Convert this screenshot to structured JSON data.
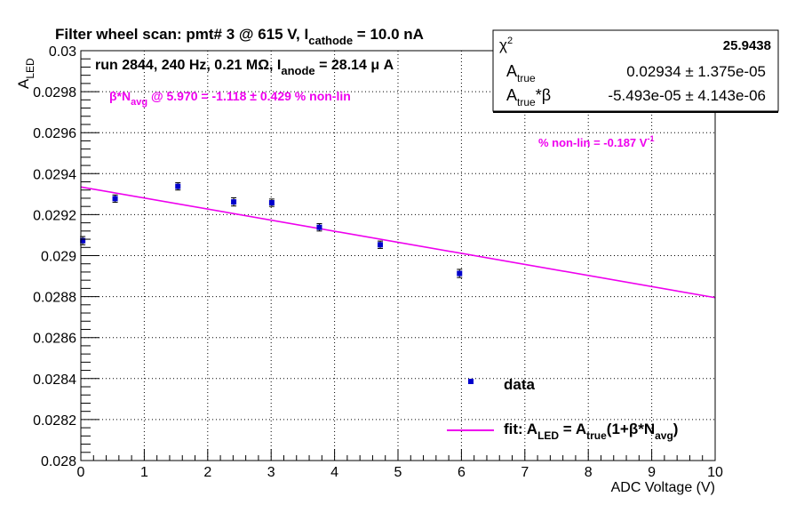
{
  "header": {
    "title_main": "Filter wheel scan: pmt#   3 @   615 V, I",
    "title_sub": "cathode",
    "title_tail": " = 10.0 nA",
    "run_main": "run 2844, 240 Hz, 0.21 MΩ, I",
    "run_sub": "anode",
    "run_tail": " = 28.14 μ A"
  },
  "annotations": {
    "beta_pre": "β*N",
    "beta_sub": "avg",
    "beta_tail": " @ 5.970 = -1.118 ± 0.429 % non-lin",
    "nonlin_main": "% non-lin = -0.187 V",
    "nonlin_sup": "-1"
  },
  "stats_box": {
    "chi2_label": "χ",
    "chi2_sup": "2",
    "chi2_value": "25.9438",
    "atrue_label": "A",
    "atrue_sub": "true",
    "atrue_value": "0.02934 ± 1.375e-05",
    "atb_label": "A",
    "atb_sub": "true",
    "atb_tail": "*β",
    "atb_value": "-5.493e-05 ± 4.143e-06"
  },
  "legend": {
    "data_label": "data",
    "fit_pre": "fit: A",
    "fit_sub1": "LED",
    "fit_mid": " = A",
    "fit_sub2": "true",
    "fit_mid2": "(1+β*N",
    "fit_sub3": "avg",
    "fit_tail": ")"
  },
  "axes": {
    "xlabel": "ADC Voltage (V)",
    "ylabel_main": "A",
    "ylabel_sub": "LED"
  },
  "colors": {
    "data": "#0000cc",
    "fit": "#ee00ee",
    "annotation": "#ee00ee",
    "grid": "#000000"
  },
  "chart_data": {
    "type": "scatter",
    "xlim": [
      0,
      10
    ],
    "ylim": [
      0.028,
      0.03
    ],
    "x_ticks": [
      0,
      1,
      2,
      3,
      4,
      5,
      6,
      7,
      8,
      9,
      10
    ],
    "y_ticks": [
      0.028,
      0.0282,
      0.0284,
      0.0286,
      0.0288,
      0.029,
      0.0292,
      0.0294,
      0.0296,
      0.0298,
      0.03
    ],
    "y_tick_labels": [
      "0.028",
      "0.0282",
      "0.0284",
      "0.0286",
      "0.0288",
      "0.029",
      "0.0292",
      "0.0294",
      "0.0296",
      "0.0298",
      "0.03"
    ],
    "grid": true,
    "series": [
      {
        "name": "data",
        "kind": "points_with_errors",
        "points": [
          {
            "x": 0.03,
            "y": 0.029073,
            "err": 2e-05
          },
          {
            "x": 0.54,
            "y": 0.029278,
            "err": 1.8e-05
          },
          {
            "x": 1.53,
            "y": 0.029338,
            "err": 1.8e-05
          },
          {
            "x": 2.41,
            "y": 0.029262,
            "err": 2e-05
          },
          {
            "x": 3.01,
            "y": 0.029258,
            "err": 1.8e-05
          },
          {
            "x": 3.76,
            "y": 0.029138,
            "err": 1.8e-05
          },
          {
            "x": 4.72,
            "y": 0.029053,
            "err": 1.8e-05
          },
          {
            "x": 5.97,
            "y": 0.028913,
            "err": 2e-05
          }
        ]
      },
      {
        "name": "fit: A_LED = A_true(1+β*N_avg)",
        "kind": "line",
        "x": [
          0,
          10
        ],
        "y": [
          0.029335,
          0.028795
        ]
      }
    ]
  }
}
